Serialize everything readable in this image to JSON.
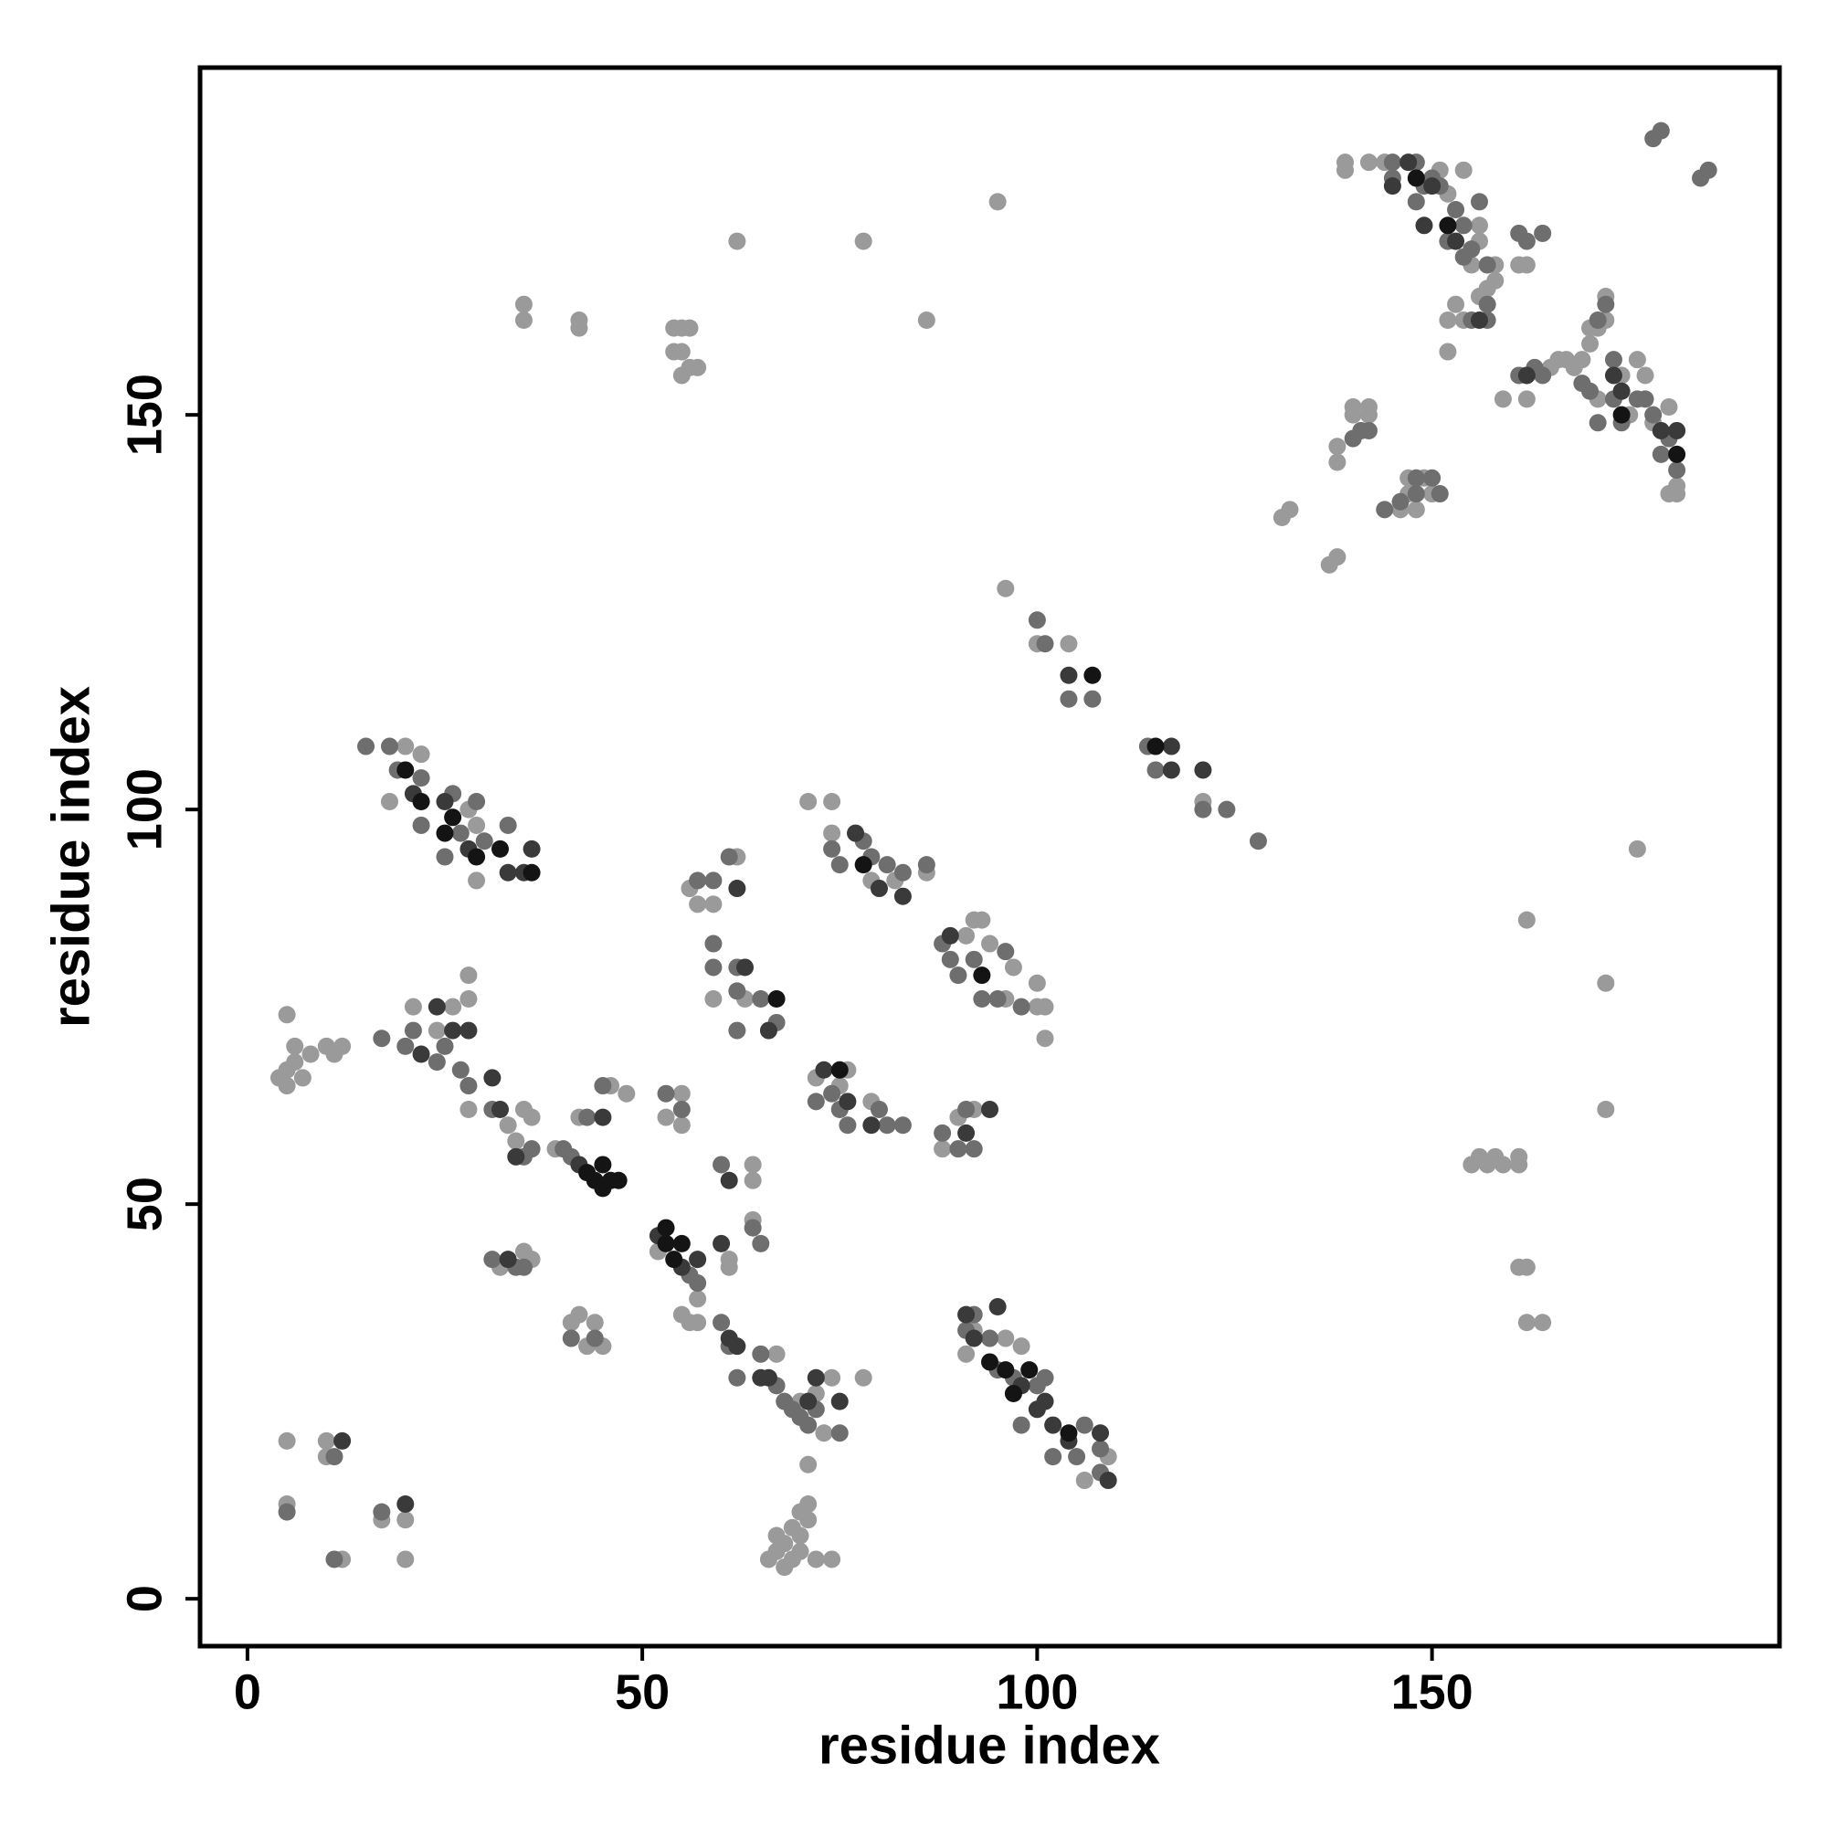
{
  "chart_data": {
    "type": "scatter",
    "xlabel": "residue index",
    "ylabel": "residue index",
    "xlim": [
      -6,
      194
    ],
    "ylim": [
      -6,
      194
    ],
    "xticks": [
      0,
      50,
      100,
      150
    ],
    "yticks": [
      0,
      50,
      100,
      150
    ],
    "series": [
      {
        "color": "#9a9a9a",
        "x": [
          4,
          5,
          6,
          7,
          8,
          5,
          6,
          10,
          11,
          12,
          5,
          5,
          5,
          10,
          10,
          12,
          17,
          20,
          20,
          20,
          18,
          22,
          28,
          29,
          29,
          21,
          24,
          26,
          28,
          28,
          28,
          34,
          35,
          36,
          33,
          39,
          42,
          46,
          48,
          32,
          35,
          36,
          41,
          42,
          43,
          44,
          45,
          52,
          56,
          57,
          55,
          57,
          55,
          53,
          55,
          61,
          61,
          64,
          64,
          64,
          56,
          57,
          59,
          62,
          59,
          63,
          67,
          70,
          71,
          72,
          74,
          73,
          78,
          74,
          66,
          67,
          67,
          68,
          68,
          69,
          69,
          70,
          70,
          70,
          71,
          71,
          72,
          71,
          74,
          74,
          79,
          82,
          86,
          72,
          75,
          76,
          79,
          91,
          92,
          93,
          94,
          96,
          97,
          100,
          100,
          101,
          101,
          88,
          90,
          92,
          91,
          92,
          96,
          98,
          106,
          109,
          95,
          96,
          100,
          104,
          121,
          35,
          35,
          42,
          42,
          54,
          55,
          56,
          54,
          55,
          56,
          57,
          55,
          62,
          78,
          86,
          131,
          132,
          137,
          138,
          138,
          138,
          140,
          140,
          142,
          142,
          146,
          147,
          147,
          148,
          149,
          150,
          139,
          139,
          142,
          144,
          151,
          152,
          154,
          155,
          156,
          156,
          157,
          153,
          154,
          156,
          158,
          152,
          152,
          158,
          159,
          161,
          162,
          162,
          165,
          166,
          167,
          168,
          169,
          171,
          172,
          172,
          174,
          175,
          177,
          178,
          180,
          181,
          181,
          180,
          171,
          170,
          170,
          176,
          176,
          172,
          172,
          162,
          155,
          156,
          157,
          158,
          159,
          161,
          161,
          161,
          162,
          162,
          164
        ],
        "values": [
          66,
          67,
          68,
          66,
          69,
          65,
          70,
          70,
          69,
          70,
          74,
          20,
          12,
          18,
          20,
          5,
          10,
          10,
          5,
          108,
          101,
          107,
          100,
          98,
          91,
          75,
          72,
          75,
          76,
          79,
          62,
          58,
          62,
          61,
          60,
          57,
          61,
          65,
          64,
          42,
          44,
          43,
          35,
          36,
          32,
          35,
          32,
          44,
          35,
          35,
          36,
          38,
          60,
          61,
          64,
          43,
          42,
          53,
          55,
          48,
          90,
          88,
          88,
          94,
          76,
          76,
          31,
          25,
          17,
          26,
          28,
          21,
          28,
          5,
          5,
          6,
          8,
          4,
          7,
          5,
          9,
          6,
          8,
          11,
          12,
          10,
          5,
          101,
          101,
          97,
          91,
          91,
          92,
          66,
          65,
          67,
          63,
          84,
          86,
          86,
          83,
          76,
          80,
          78,
          75,
          75,
          71,
          57,
          61,
          62,
          31,
          34,
          33,
          32,
          15,
          18,
          177,
          128,
          121,
          121,
          101,
          164,
          162,
          162,
          161,
          161,
          161,
          161,
          158,
          158,
          156,
          156,
          155,
          172,
          172,
          162,
          137,
          138,
          131,
          132,
          144,
          146,
          150,
          151,
          150,
          151,
          138,
          140,
          142,
          138,
          142,
          140,
          182,
          181,
          182,
          182,
          181,
          178,
          181,
          169,
          174,
          172,
          166,
          164,
          162,
          165,
          169,
          162,
          158,
          167,
          152,
          169,
          169,
          152,
          156,
          157,
          157,
          156,
          157,
          161,
          165,
          162,
          155,
          150,
          155,
          149,
          151,
          141,
          140,
          140,
          152,
          159,
          161,
          157,
          95,
          78,
          62,
          86,
          55,
          56,
          55,
          56,
          55,
          56,
          55,
          42,
          42,
          35,
          35
        ]
      },
      {
        "color": "#6e6e6e",
        "x": [
          15,
          18,
          19,
          22,
          22,
          25,
          26,
          27,
          29,
          30,
          33,
          17,
          20,
          21,
          24,
          25,
          27,
          28,
          31,
          35,
          36,
          40,
          41,
          43,
          45,
          31,
          34,
          35,
          41,
          44,
          56,
          57,
          55,
          53,
          60,
          64,
          65,
          57,
          59,
          61,
          59,
          59,
          62,
          62,
          62,
          65,
          67,
          60,
          61,
          62,
          65,
          67,
          68,
          69,
          70,
          72,
          75,
          71,
          74,
          75,
          78,
          79,
          81,
          83,
          86,
          72,
          74,
          75,
          76,
          80,
          81,
          83,
          88,
          89,
          90,
          92,
          93,
          95,
          96,
          98,
          88,
          90,
          91,
          92,
          91,
          92,
          94,
          95,
          97,
          98,
          100,
          101,
          102,
          105,
          106,
          108,
          108,
          100,
          101,
          104,
          107,
          114,
          115,
          121,
          124,
          128,
          140,
          141,
          142,
          144,
          146,
          148,
          148,
          150,
          151,
          145,
          145,
          148,
          148,
          149,
          150,
          151,
          152,
          153,
          154,
          154,
          155,
          156,
          157,
          157,
          155,
          157,
          161,
          162,
          164,
          161,
          163,
          164,
          169,
          170,
          171,
          172,
          173,
          173,
          174,
          176,
          177,
          178,
          179,
          180,
          181,
          171,
          178,
          179,
          184,
          185,
          11,
          11,
          17,
          5
        ],
        "values": [
          108,
          108,
          105,
          98,
          104,
          94,
          102,
          97,
          101,
          96,
          98,
          71,
          70,
          72,
          68,
          70,
          67,
          65,
          62,
          56,
          57,
          57,
          56,
          61,
          65,
          43,
          42,
          42,
          33,
          33,
          41,
          40,
          62,
          64,
          55,
          47,
          45,
          91,
          91,
          94,
          83,
          80,
          80,
          77,
          72,
          76,
          73,
          35,
          32,
          28,
          31,
          27,
          25,
          24,
          23,
          24,
          21,
          22,
          95,
          93,
          96,
          94,
          93,
          92,
          93,
          63,
          64,
          62,
          60,
          62,
          60,
          60,
          83,
          81,
          79,
          81,
          76,
          76,
          82,
          75,
          59,
          57,
          62,
          57,
          34,
          36,
          33,
          29,
          28,
          22,
          27,
          28,
          18,
          18,
          22,
          19,
          16,
          124,
          121,
          114,
          114,
          108,
          105,
          100,
          100,
          96,
          147,
          148,
          148,
          138,
          139,
          142,
          140,
          142,
          140,
          180,
          182,
          182,
          177,
          179,
          180,
          179,
          172,
          176,
          174,
          170,
          171,
          177,
          169,
          164,
          162,
          162,
          173,
          172,
          173,
          155,
          156,
          155,
          154,
          153,
          162,
          164,
          157,
          152,
          149,
          152,
          152,
          150,
          145,
          147,
          143,
          149,
          185,
          186,
          180,
          181,
          5,
          18,
          11,
          11
        ]
      },
      {
        "color": "#3a3a3a",
        "x": [
          21,
          25,
          28,
          33,
          35,
          36,
          42,
          45,
          52,
          55,
          57,
          61,
          62,
          65,
          66,
          71,
          72,
          75,
          77,
          80,
          83,
          89,
          91,
          92,
          95,
          101,
          102,
          104,
          108,
          109,
          104,
          117,
          117,
          121,
          145,
          147,
          149,
          150,
          153,
          156,
          162,
          173,
          174,
          179,
          181,
          28,
          31,
          32,
          34,
          24,
          60,
          62,
          63,
          66,
          73,
          76,
          79,
          94,
          91,
          98,
          100,
          12,
          20,
          26,
          22,
          61,
          33
        ],
        "values": [
          102,
          101,
          95,
          92,
          92,
          95,
          55,
          61,
          46,
          42,
          43,
          53,
          32,
          28,
          28,
          25,
          28,
          25,
          97,
          90,
          89,
          84,
          36,
          33,
          37,
          25,
          22,
          20,
          21,
          15,
          117,
          108,
          105,
          105,
          179,
          182,
          174,
          179,
          172,
          162,
          155,
          155,
          153,
          148,
          148,
          72,
          66,
          62,
          56,
          75,
          45,
          90,
          80,
          72,
          67,
          63,
          60,
          62,
          59,
          27,
          24,
          20,
          12,
          72,
          69,
          33,
          43
        ]
      },
      {
        "color": "#141414",
        "x": [
          20,
          22,
          25,
          29,
          32,
          36,
          43,
          44,
          45,
          46,
          53,
          54,
          55,
          93,
          96,
          97,
          104,
          107,
          148,
          152,
          75,
          94,
          99,
          26,
          47,
          53,
          115,
          67,
          78,
          174,
          181,
          45
        ],
        "values": [
          105,
          101,
          97,
          94,
          95,
          92,
          54,
          53,
          52,
          53,
          47,
          43,
          45,
          79,
          29,
          26,
          21,
          117,
          180,
          174,
          67,
          30,
          29,
          99,
          53,
          45,
          108,
          76,
          93,
          150,
          145,
          55
        ]
      }
    ]
  }
}
